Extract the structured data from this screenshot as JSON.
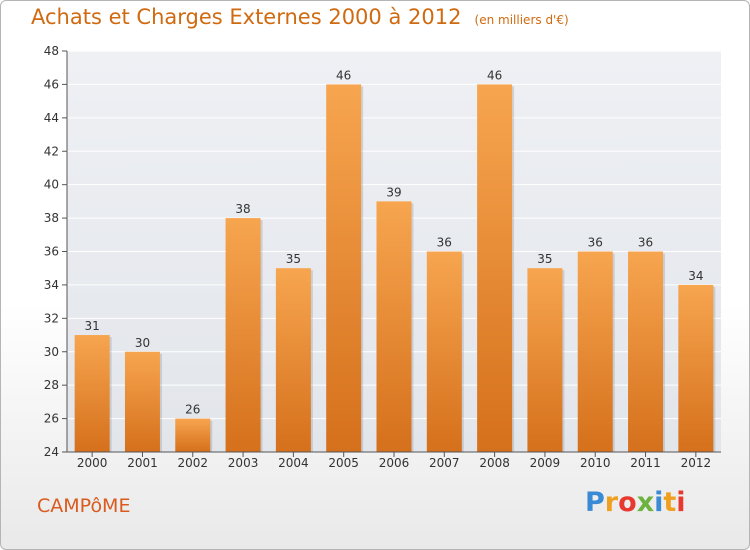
{
  "header": {
    "title": "Achats et Charges Externes 2000 à 2012",
    "unit": "(en milliers d'€)"
  },
  "footer": {
    "commune": "CAMPôME",
    "logo_text": "Proxiti"
  },
  "colors": {
    "bar_top": "#f7a54f",
    "bar_bottom": "#d5701c",
    "title": "#d06a10",
    "commune": "#d95b1e"
  },
  "chart_data": {
    "type": "bar",
    "title": "Achats et Charges Externes 2000 à 2012",
    "subtitle": "(en milliers d'€)",
    "xlabel": "",
    "ylabel": "",
    "categories": [
      "2000",
      "2001",
      "2002",
      "2003",
      "2004",
      "2005",
      "2006",
      "2007",
      "2008",
      "2009",
      "2010",
      "2011",
      "2012"
    ],
    "values": [
      31,
      30,
      26,
      38,
      35,
      46,
      39,
      36,
      46,
      35,
      36,
      36,
      34
    ],
    "ylim": [
      24,
      48
    ],
    "yticks": [
      24,
      26,
      28,
      30,
      32,
      34,
      36,
      38,
      40,
      42,
      44,
      46,
      48
    ],
    "grid": true,
    "legend": "none"
  }
}
